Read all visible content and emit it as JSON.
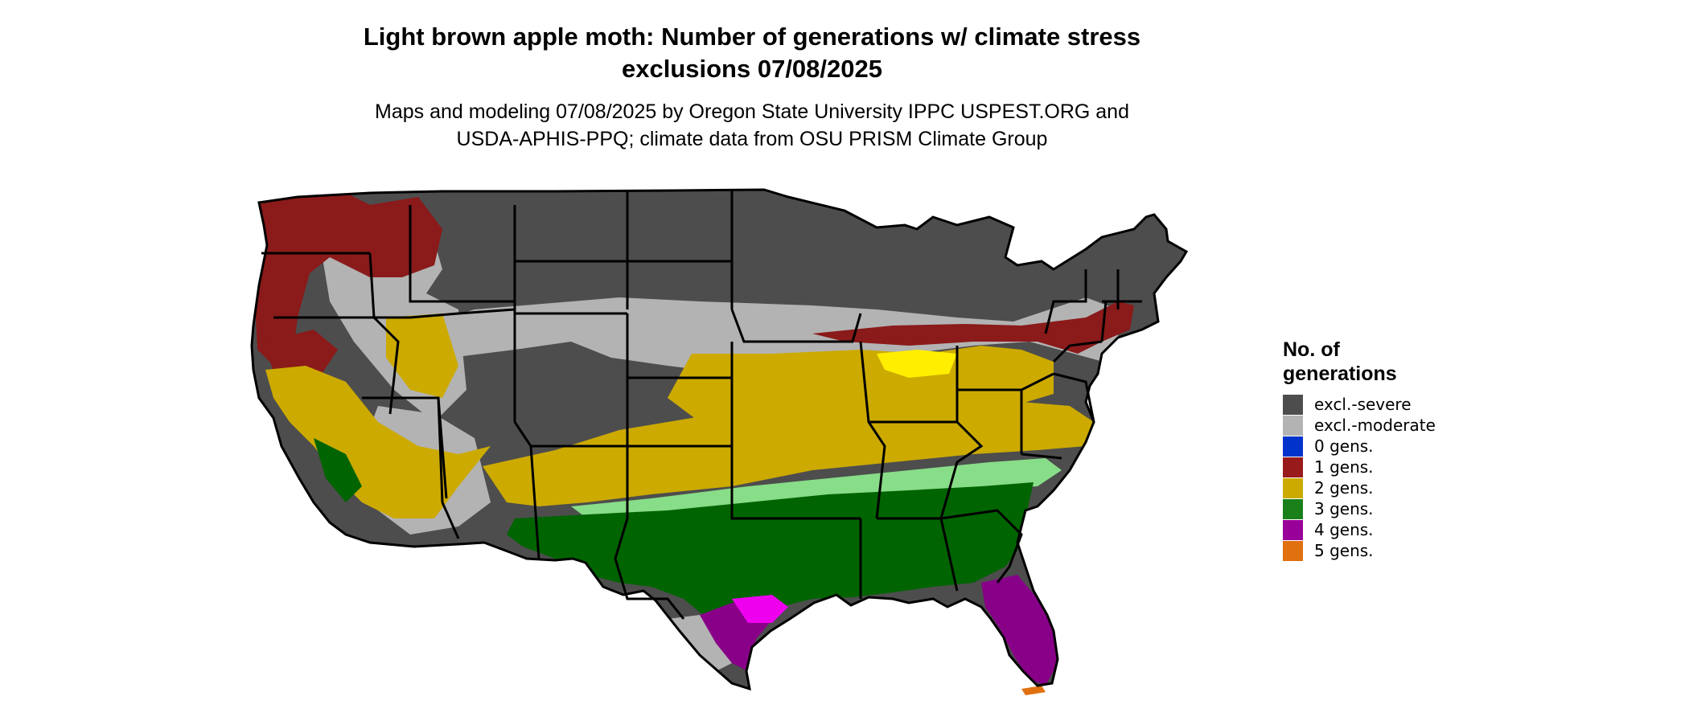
{
  "title": {
    "line1": "Light brown apple moth: Number of generations w/ climate stress",
    "line2": "exclusions 07/08/2025"
  },
  "subtitle": {
    "line1": "Maps and modeling 07/08/2025 by Oregon State University IPPC USPEST.ORG and",
    "line2": "USDA-APHIS-PPQ; climate data from OSU PRISM Climate Group"
  },
  "legend": {
    "title_line1": "No. of",
    "title_line2": "generations",
    "items": [
      {
        "label": "excl.-severe",
        "color": "#4d4d4d"
      },
      {
        "label": "excl.-moderate",
        "color": "#b3b3b3"
      },
      {
        "label": "0 gens.",
        "color": "#0033cc"
      },
      {
        "label": "1 gens.",
        "color": "#991a1a"
      },
      {
        "label": "2 gens.",
        "color": "#ccaa00"
      },
      {
        "label": "3 gens.",
        "color": "#1a801a"
      },
      {
        "label": "4 gens.",
        "color": "#990099"
      },
      {
        "label": "5 gens.",
        "color": "#e07010"
      }
    ]
  },
  "map_colors": {
    "excl_severe": "#4d4d4d",
    "excl_moderate": "#b3b3b3",
    "one_gen": "#8b1a1a",
    "two_gen": "#ccaa00",
    "two_gen_bright": "#ffee00",
    "three_gen": "#006400",
    "three_gen_light": "#88dd88",
    "four_gen": "#880088",
    "four_gen_bright": "#ee00ee",
    "five_gen": "#e07010",
    "borders": "#000000"
  }
}
